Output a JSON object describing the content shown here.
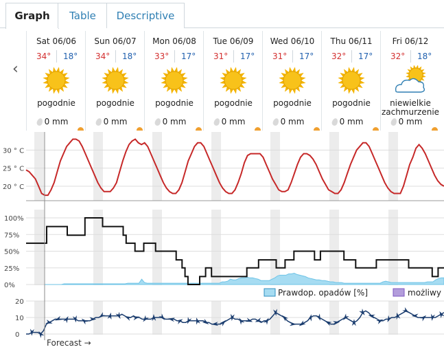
{
  "tabs": [
    {
      "label": "Graph",
      "active": true
    },
    {
      "label": "Table",
      "active": false
    },
    {
      "label": "Descriptive",
      "active": false
    }
  ],
  "days": [
    {
      "date": "Sat 06/06",
      "hi": "34°",
      "lo": "18°",
      "icon": "sun-icon",
      "desc": "pogodnie",
      "rain": "0 mm"
    },
    {
      "date": "Sun 06/07",
      "hi": "34°",
      "lo": "18°",
      "icon": "sun-icon",
      "desc": "pogodnie",
      "rain": "0 mm"
    },
    {
      "date": "Mon 06/08",
      "hi": "33°",
      "lo": "17°",
      "icon": "sun-icon",
      "desc": "pogodnie",
      "rain": "0 mm"
    },
    {
      "date": "Tue 06/09",
      "hi": "31°",
      "lo": "17°",
      "icon": "sun-icon",
      "desc": "pogodnie",
      "rain": "0 mm"
    },
    {
      "date": "Wed 06/10",
      "hi": "31°",
      "lo": "17°",
      "icon": "sun-icon",
      "desc": "pogodnie",
      "rain": "0 mm"
    },
    {
      "date": "Thu 06/11",
      "hi": "32°",
      "lo": "17°",
      "icon": "sun-icon",
      "desc": "pogodnie",
      "rain": "0 mm"
    },
    {
      "date": "Fri 06/12",
      "hi": "32°",
      "lo": "18°",
      "icon": "sun-cloud-icon",
      "desc": "niewielkie zachmurzenie",
      "rain": "0 mm"
    }
  ],
  "temp_chart": {
    "y_ticks": [
      "30 ° C",
      "25 ° C",
      "20 ° C"
    ],
    "y_values": [
      30,
      25,
      20
    ],
    "line_color": "#c62828",
    "series_c": [
      24.5,
      24,
      23,
      22,
      20,
      18,
      17.5,
      17.5,
      19,
      21,
      24,
      27,
      29,
      31,
      32,
      33,
      33,
      32.5,
      31,
      29,
      27,
      25,
      23,
      21,
      19.5,
      18.5,
      18.5,
      18.5,
      19.5,
      21,
      24,
      27,
      29.5,
      31.5,
      32.5,
      33,
      32,
      31.5,
      32,
      31,
      29,
      27,
      25,
      23,
      21,
      19.5,
      18.5,
      18,
      18,
      19,
      21,
      24,
      27,
      29,
      31,
      32,
      32,
      31,
      29,
      27,
      25,
      23,
      21,
      19.5,
      18.5,
      18,
      18,
      19,
      21,
      23.5,
      26.5,
      28.5,
      29,
      29,
      29,
      29,
      28,
      26,
      24,
      22,
      20.5,
      19,
      18.5,
      18.5,
      19,
      21,
      23.5,
      26,
      28,
      29,
      29,
      28.5,
      27.5,
      26,
      24,
      22,
      20.5,
      19,
      18.5,
      18,
      18,
      19,
      21,
      23.5,
      26,
      28,
      30,
      31,
      32,
      32,
      31,
      29,
      27,
      25,
      23,
      21,
      19.5,
      18.5,
      18,
      18,
      18,
      20,
      23,
      26,
      28,
      30.5,
      31.5,
      30.5,
      29,
      27,
      25,
      23,
      21.5,
      20.5,
      20
    ]
  },
  "prob_chart": {
    "y_ticks": [
      "100%",
      "75%",
      "50%",
      "25%",
      "0%"
    ],
    "y_values": [
      100,
      75,
      50,
      25,
      0
    ],
    "cloud_color": "#111111",
    "precip_color": "#a6dcf2",
    "cloud_pct": [
      62,
      62,
      62,
      62,
      62,
      62,
      62,
      87,
      87,
      87,
      87,
      87,
      87,
      87,
      74,
      74,
      74,
      74,
      74,
      74,
      100,
      100,
      100,
      100,
      100,
      100,
      87,
      87,
      87,
      87,
      87,
      87,
      87,
      74,
      62,
      62,
      62,
      50,
      50,
      50,
      62,
      62,
      62,
      62,
      50,
      50,
      50,
      50,
      50,
      50,
      50,
      37,
      37,
      25,
      12,
      0,
      0,
      0,
      0,
      12,
      12,
      25,
      25,
      12,
      12,
      12,
      12,
      12,
      12,
      12,
      12,
      12,
      12,
      12,
      12,
      25,
      25,
      25,
      25,
      37,
      37,
      37,
      37,
      37,
      37,
      25,
      25,
      25,
      37,
      37,
      37,
      50,
      50,
      50,
      50,
      50,
      50,
      50,
      37,
      37,
      50,
      50,
      50,
      50,
      50,
      50,
      50,
      50,
      37,
      37,
      37,
      37,
      25,
      25,
      25,
      25,
      25,
      25,
      25,
      37,
      37,
      37,
      37,
      37,
      37,
      37,
      37,
      37,
      37,
      37,
      25,
      25,
      25,
      25,
      25,
      25,
      25,
      25,
      12,
      12,
      25,
      25,
      25
    ],
    "precip_pct": [
      0,
      0,
      0,
      0,
      0,
      0,
      0,
      1,
      1,
      1,
      1,
      1,
      1,
      1,
      1,
      1,
      1,
      1,
      1,
      1,
      1,
      1,
      1,
      1,
      1,
      1,
      1,
      1,
      1,
      1,
      2,
      2,
      2,
      2,
      2,
      8,
      3,
      2,
      2,
      2,
      2,
      2,
      2,
      2,
      2,
      2,
      2,
      2,
      2,
      2,
      2,
      2,
      2,
      2,
      2,
      2,
      2,
      2,
      2,
      2,
      2,
      2,
      2,
      2,
      4,
      4,
      5,
      8,
      7,
      7,
      9,
      10,
      10,
      11,
      10,
      10,
      9,
      8,
      6,
      6,
      6,
      6,
      8,
      10,
      13,
      14,
      14,
      14,
      16,
      16,
      17,
      15,
      14,
      13,
      12,
      10,
      9,
      8,
      7,
      7,
      6,
      6,
      5,
      4,
      4,
      3,
      3,
      3,
      2,
      2,
      2,
      2,
      2,
      2,
      2,
      2,
      2,
      2,
      2,
      2,
      2,
      2,
      4,
      5,
      4,
      3,
      3,
      3,
      3,
      3,
      3,
      3,
      3,
      3,
      3,
      3,
      3,
      3,
      4,
      4,
      4,
      7,
      9,
      10,
      10
    ],
    "legend_precip": "Prawdop. opadów [%]",
    "legend_possible": "możliwy"
  },
  "wind_chart": {
    "y_ticks": [
      "20",
      "10",
      "0"
    ],
    "y_values": [
      20,
      10,
      0
    ],
    "arrow_color": "#1a3c6e",
    "speed": [
      0,
      0,
      1,
      1,
      1,
      0,
      2,
      6,
      7,
      8,
      9,
      9,
      9,
      9,
      9,
      9,
      9,
      9,
      8,
      8,
      8,
      8,
      8,
      9,
      10,
      10,
      11,
      11,
      11,
      11,
      11,
      11,
      11,
      12,
      11,
      10,
      10,
      11,
      10,
      10,
      9,
      9,
      9,
      9,
      10,
      10,
      10,
      10,
      9,
      9,
      9,
      9,
      8,
      8,
      7,
      7,
      8,
      8,
      8,
      8,
      8,
      8,
      7,
      7,
      6,
      6,
      6,
      6,
      7,
      8,
      9,
      10,
      9,
      9,
      8,
      8,
      8,
      8,
      9,
      9,
      8,
      7,
      8,
      8,
      9,
      11,
      13,
      12,
      11,
      10,
      8,
      7,
      6,
      6,
      6,
      6,
      7,
      8,
      10,
      11,
      11,
      10,
      9,
      8,
      7,
      6,
      6,
      7,
      8,
      9,
      10,
      9,
      8,
      7,
      8,
      10,
      13,
      14,
      13,
      11,
      10,
      9,
      8,
      8,
      9,
      9,
      10,
      10,
      11,
      12,
      13,
      14,
      13,
      12,
      11,
      10,
      10,
      10,
      10,
      10,
      10,
      10,
      11,
      12,
      13
    ]
  },
  "footer": {
    "forecast_label": "Forecast →"
  }
}
